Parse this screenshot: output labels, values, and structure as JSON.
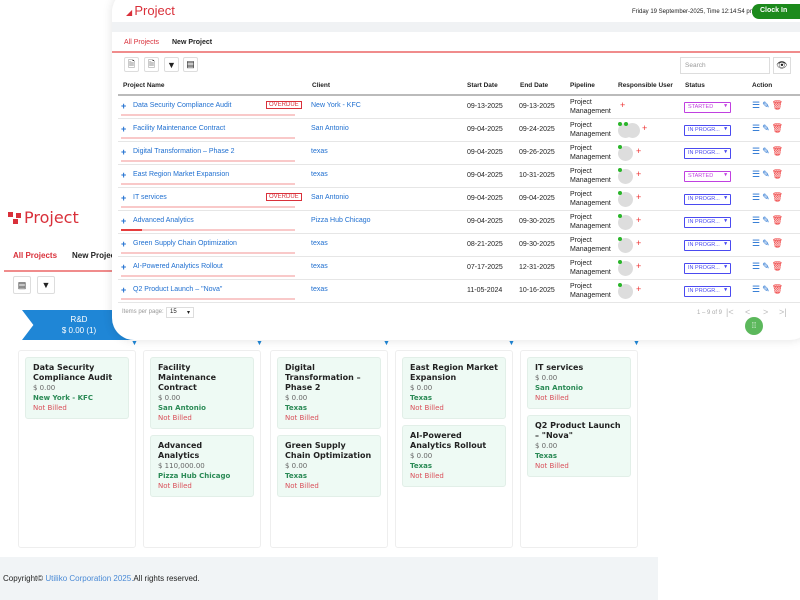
{
  "back": {
    "logo": "Project",
    "tabs": [
      "All Projects",
      "New Project"
    ],
    "stage": {
      "name": "R&D",
      "amount": "$ 0.00",
      "count": "(1)"
    },
    "columns": [
      [
        {
          "title": "Data Security Compliance Audit",
          "amount": "$ 0.00",
          "client": "New York - KFC",
          "billing": "Not Billed"
        }
      ],
      [
        {
          "title": "Facility Maintenance Contract",
          "amount": "$ 0.00",
          "client": "San Antonio",
          "billing": "Not Billed"
        },
        {
          "title": "Advanced Analytics",
          "amount": "$ 110,000.00",
          "client": "Pizza Hub Chicago",
          "billing": "Not Billed"
        }
      ],
      [
        {
          "title": "Digital Transformation – Phase 2",
          "amount": "$ 0.00",
          "client": "Texas",
          "billing": "Not Billed"
        },
        {
          "title": "Green Supply Chain Optimization",
          "amount": "$ 0.00",
          "client": "Texas",
          "billing": "Not Billed"
        }
      ],
      [
        {
          "title": "East Region Market Expansion",
          "amount": "$ 0.00",
          "client": "Texas",
          "billing": "Not Billed"
        },
        {
          "title": "AI-Powered Analytics Rollout",
          "amount": "$ 0.00",
          "client": "Texas",
          "billing": "Not Billed"
        }
      ],
      [
        {
          "title": "IT services",
          "amount": "$ 0.00",
          "client": "San Antonio",
          "billing": "Not Billed"
        },
        {
          "title": "Q2 Product Launch – \"Nova\"",
          "amount": "$ 0.00",
          "client": "Texas",
          "billing": "Not Billed"
        }
      ]
    ],
    "footer": {
      "prefix": "Copyright©",
      "company": "Utiliko Corporation 2025.",
      "suffix": "All rights reserved."
    }
  },
  "front": {
    "title": "Project",
    "datetime": "Friday 19 September-2025, Time 12:14:54 pm",
    "clock_label": "Clock In",
    "tabs": [
      "All Projects",
      "New Project"
    ],
    "search_placeholder": "Search",
    "headers": [
      "Project Name",
      "Client",
      "Start Date",
      "End Date",
      "Pipeline",
      "Responsible User",
      "Status",
      "Action"
    ],
    "rows": [
      {
        "name": "Data Security Compliance Audit",
        "overdue": "OVERDUE",
        "client": "New York - KFC",
        "start": "09-13-2025",
        "end": "09-13-2025",
        "pipeline": "Project Management",
        "users": 0,
        "status": "STARTED",
        "progress": 0
      },
      {
        "name": "Facility Maintenance Contract",
        "overdue": "",
        "client": "San Antonio",
        "start": "09-04-2025",
        "end": "09-24-2025",
        "pipeline": "Project Management",
        "users": 2,
        "status": "IN PROGR...",
        "progress": 0
      },
      {
        "name": "Digital Transformation – Phase 2",
        "overdue": "",
        "client": "texas",
        "start": "09-04-2025",
        "end": "09-26-2025",
        "pipeline": "Project Management",
        "users": 1,
        "status": "IN PROGR...",
        "progress": 0
      },
      {
        "name": "East Region Market Expansion",
        "overdue": "",
        "client": "texas",
        "start": "09-04-2025",
        "end": "10-31-2025",
        "pipeline": "Project Management",
        "users": 1,
        "status": "STARTED",
        "progress": 0
      },
      {
        "name": "IT services",
        "overdue": "OVERDUE",
        "client": "San Antonio",
        "start": "09-04-2025",
        "end": "09-04-2025",
        "pipeline": "Project Management",
        "users": 1,
        "status": "IN PROGR...",
        "progress": 0
      },
      {
        "name": "Advanced Analytics",
        "overdue": "",
        "client": "Pizza Hub Chicago",
        "start": "09-04-2025",
        "end": "09-30-2025",
        "pipeline": "Project Management",
        "users": 1,
        "status": "IN PROGR...",
        "progress": 12
      },
      {
        "name": "Green Supply Chain Optimization",
        "overdue": "",
        "client": "texas",
        "start": "08-21-2025",
        "end": "09-30-2025",
        "pipeline": "Project Management",
        "users": 1,
        "status": "IN PROGR...",
        "progress": 0
      },
      {
        "name": "AI-Powered Analytics Rollout",
        "overdue": "",
        "client": "texas",
        "start": "07-17-2025",
        "end": "12-31-2025",
        "pipeline": "Project Management",
        "users": 1,
        "status": "IN PROGR...",
        "progress": 0
      },
      {
        "name": "Q2 Product Launch – \"Nova\"",
        "overdue": "",
        "client": "texas",
        "start": "11-05-2024",
        "end": "10-16-2025",
        "pipeline": "Project Management",
        "users": 1,
        "status": "IN PROGR...",
        "progress": 0
      }
    ],
    "items_per_page_label": "Items per page:",
    "items_per_page": "15",
    "range": "1 – 9 of 9",
    "colors": {
      "started": "#c040e0",
      "in_progress": "#4a4af0",
      "accent": "#d9303a"
    }
  }
}
